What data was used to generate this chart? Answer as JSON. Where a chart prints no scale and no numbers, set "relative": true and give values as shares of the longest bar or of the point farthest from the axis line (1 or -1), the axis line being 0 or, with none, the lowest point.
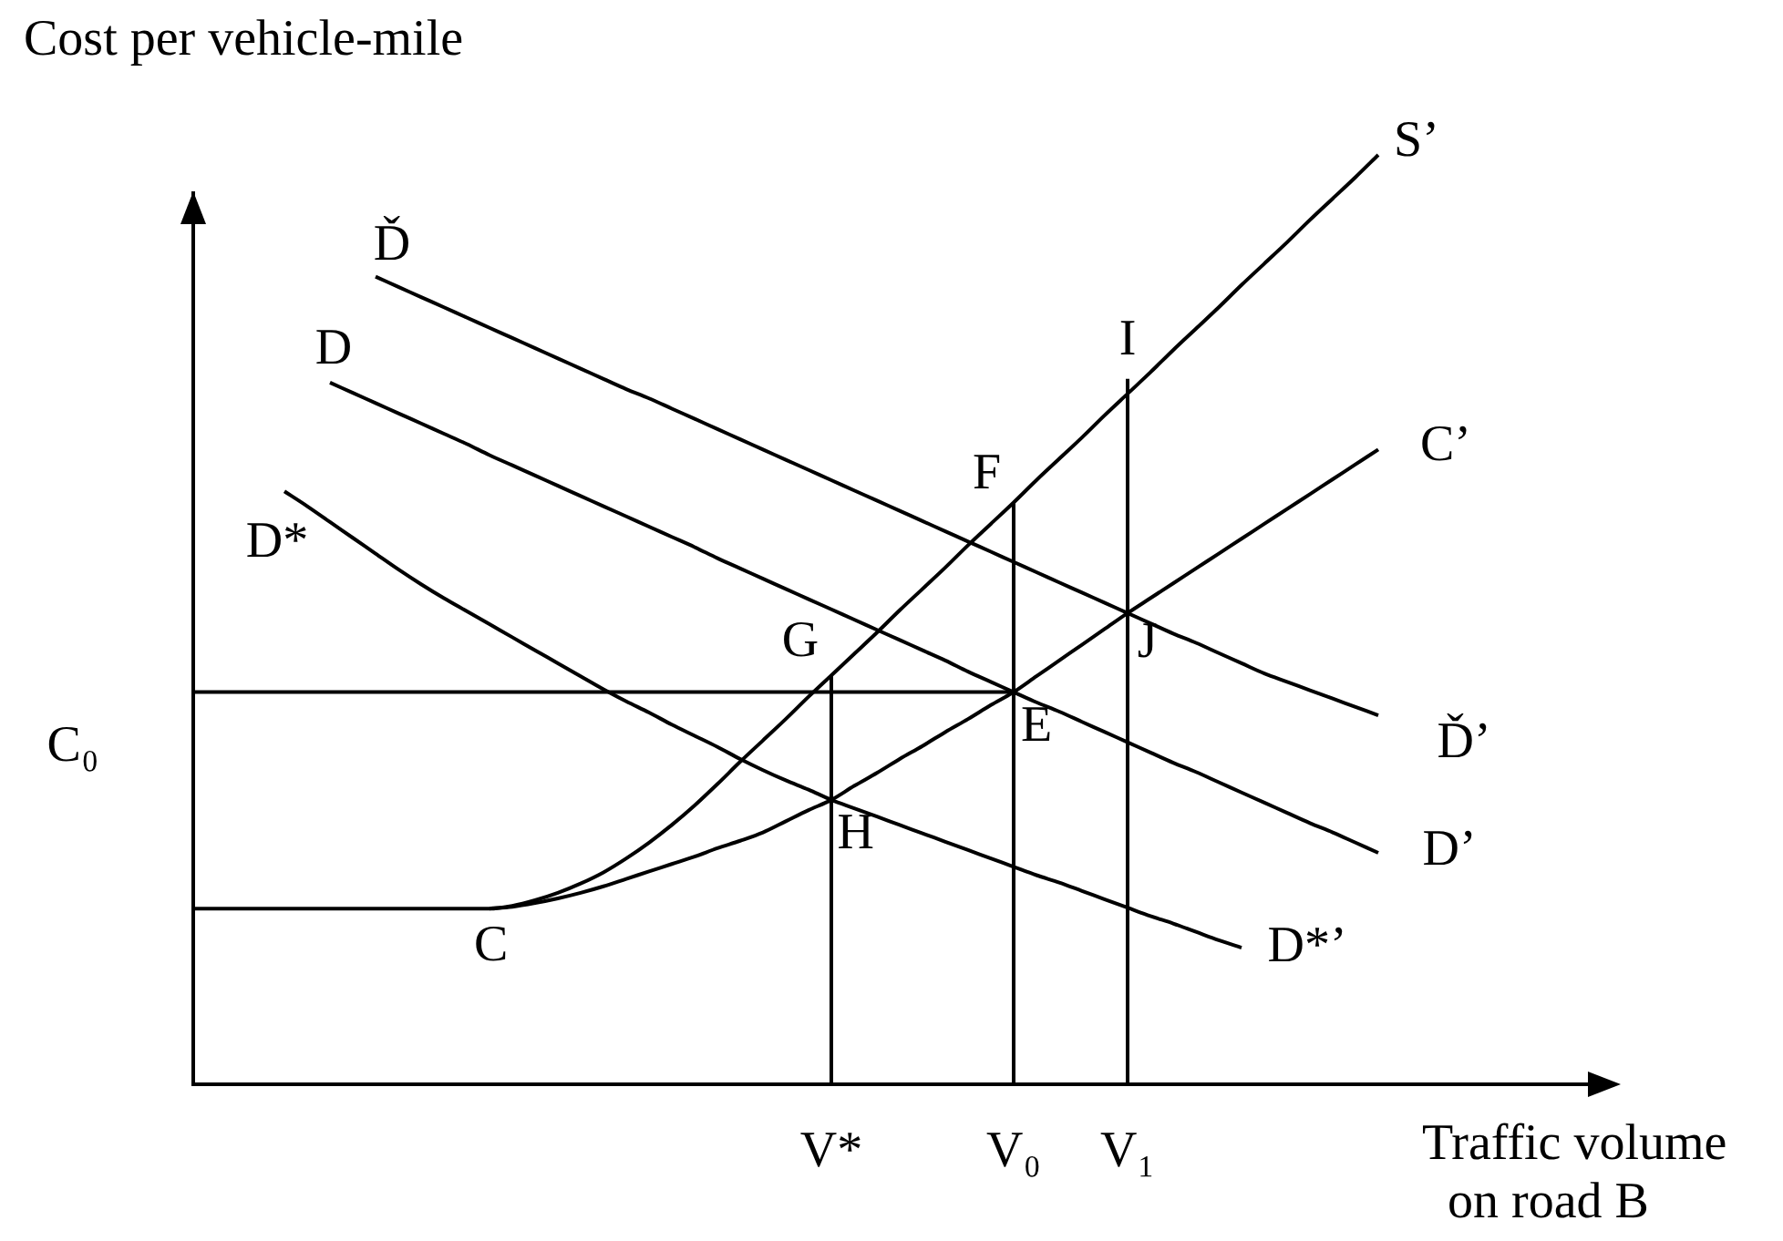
{
  "chart_data": {
    "type": "line",
    "relative": true,
    "ylabel": "Cost per vehicle-mile",
    "xlabel": "Traffic volume on road B",
    "categories": [
      null,
      null,
      null,
      null,
      null,
      null,
      null,
      null,
      null,
      null,
      null,
      null,
      null,
      null,
      null,
      null,
      null,
      null,
      null,
      null,
      null,
      null,
      null,
      null,
      null,
      null,
      null,
      null,
      "V*",
      null,
      null,
      null,
      null,
      null,
      null,
      null,
      "V₀",
      null,
      null,
      null,
      null,
      "V₁",
      null,
      null,
      null,
      null,
      null,
      null,
      null,
      null,
      null,
      null,
      null,
      null,
      null,
      null,
      null,
      null,
      null,
      null,
      null,
      null,
      null
    ],
    "series": [
      {
        "color": "#000000",
        "values": [
          null,
          null,
          null,
          null,
          null,
          null,
          null,
          null,
          0.869,
          0.858,
          0.847,
          0.836,
          0.825,
          0.814,
          0.803,
          0.792,
          0.781,
          0.77,
          0.759,
          0.748,
          0.738,
          0.727,
          0.716,
          0.705,
          0.694,
          0.683,
          0.672,
          0.661,
          0.65,
          0.639,
          0.628,
          0.617,
          0.606,
          0.595,
          0.584,
          0.573,
          0.562,
          0.551,
          0.54,
          0.529,
          0.518,
          0.507,
          0.496,
          0.485,
          0.475,
          0.464,
          0.453,
          0.442,
          0.433,
          0.424,
          0.415,
          0.406,
          0.397,
          null,
          null,
          null,
          null,
          null,
          null,
          null,
          null,
          null,
          null
        ]
      },
      {
        "color": "#000000",
        "values": [
          null,
          null,
          null,
          null,
          null,
          null,
          0.755,
          0.744,
          0.733,
          0.722,
          0.711,
          0.7,
          0.689,
          0.677,
          0.666,
          0.655,
          0.644,
          0.633,
          0.622,
          0.611,
          0.6,
          0.589,
          0.578,
          0.566,
          0.555,
          0.544,
          0.533,
          0.522,
          0.511,
          0.5,
          0.489,
          0.478,
          0.467,
          0.456,
          0.444,
          0.433,
          0.422,
          0.411,
          0.401,
          0.39,
          0.379,
          0.368,
          0.357,
          0.346,
          0.336,
          0.325,
          0.314,
          0.303,
          0.292,
          0.281,
          0.271,
          0.26,
          0.249,
          null,
          null,
          null,
          null,
          null,
          null,
          null,
          null,
          null,
          null
        ]
      },
      {
        "color": "#000000",
        "values": [
          null,
          null,
          null,
          null,
          0.638,
          0.622,
          0.605,
          0.588,
          0.571,
          0.554,
          0.538,
          0.523,
          0.509,
          0.495,
          0.481,
          0.467,
          0.453,
          0.439,
          0.425,
          0.412,
          0.4,
          0.387,
          0.375,
          0.363,
          0.35,
          0.338,
          0.327,
          0.317,
          0.306,
          0.297,
          0.288,
          0.279,
          0.27,
          0.261,
          0.252,
          0.243,
          0.234,
          0.225,
          0.217,
          0.208,
          0.199,
          0.19,
          0.181,
          0.173,
          0.164,
          0.155,
          0.147,
          null,
          null,
          null,
          null,
          null,
          null,
          null,
          null,
          null,
          null,
          null,
          null,
          null,
          null,
          null,
          null
        ]
      },
      {
        "color": "#000000",
        "values": [
          null,
          null,
          null,
          null,
          null,
          null,
          null,
          null,
          null,
          null,
          null,
          null,
          null,
          0.189,
          0.191,
          0.195,
          0.2,
          0.206,
          0.213,
          0.221,
          0.229,
          0.237,
          0.245,
          0.254,
          0.262,
          0.271,
          0.283,
          0.295,
          0.306,
          0.321,
          0.335,
          0.35,
          0.364,
          0.379,
          0.393,
          0.408,
          0.422,
          0.439,
          0.456,
          0.473,
          0.49,
          0.507,
          0.523,
          0.539,
          0.555,
          0.571,
          0.587,
          0.603,
          0.619,
          0.635,
          0.651,
          0.667,
          0.683,
          null,
          null,
          null,
          null,
          null,
          null,
          null,
          null,
          null,
          null
        ]
      },
      {
        "color": "#000000",
        "values": [
          0.189,
          0.189,
          0.189,
          0.189,
          0.189,
          0.189,
          0.189,
          0.189,
          0.189,
          0.189,
          0.189,
          0.189,
          0.189,
          0.189,
          0.192,
          0.198,
          0.206,
          0.216,
          0.228,
          0.243,
          0.26,
          0.279,
          0.3,
          0.323,
          0.347,
          0.37,
          0.393,
          0.417,
          0.44,
          0.463,
          0.486,
          0.51,
          0.533,
          0.556,
          0.58,
          0.603,
          0.626,
          0.65,
          0.673,
          0.696,
          0.72,
          0.743,
          0.766,
          0.79,
          0.813,
          0.836,
          0.86,
          0.883,
          0.906,
          0.93,
          0.953,
          0.976,
          1,
          null,
          null,
          null,
          null,
          null,
          null,
          null,
          null,
          null,
          null
        ]
      },
      {
        "color": "#000000",
        "x": [
          "V*",
          "V*"
        ],
        "values": [
          0,
          0.44
        ]
      },
      {
        "color": "#000000",
        "x": [
          "V₀",
          "V₀"
        ],
        "values": [
          0,
          0.626
        ]
      },
      {
        "color": "#000000",
        "x": [
          "V₁",
          "V₁"
        ],
        "values": [
          0,
          0.759
        ]
      },
      {
        "color": "#000000",
        "values": [
          0.422,
          0.422,
          0.422,
          0.422,
          0.422,
          0.422,
          0.422,
          0.422,
          0.422,
          0.422,
          0.422,
          0.422,
          0.422,
          0.422,
          0.422,
          0.422,
          0.422,
          0.422,
          0.422,
          0.422,
          0.422,
          0.422,
          0.422,
          0.422,
          0.422,
          0.422,
          0.422,
          0.422,
          0.422,
          0.422,
          0.422,
          0.422,
          0.422,
          0.422,
          0.422,
          0.422,
          0.422,
          null,
          null,
          null,
          null,
          null,
          null,
          null,
          null,
          null,
          null,
          null,
          null,
          null,
          null,
          null,
          null,
          null,
          null,
          null,
          null,
          null,
          null,
          null,
          null,
          null,
          null
        ]
      }
    ],
    "annotations": [
      "Ď",
      "D",
      "D*",
      "S’",
      "C’",
      {
        "text": "I",
        "x": "V₁",
        "y": 0.759
      },
      {
        "text": "F",
        "x": "V₀",
        "y": 0.626
      },
      {
        "text": "J",
        "x": "V₁",
        "y": 0.507
      },
      {
        "text": "G",
        "x": "V*",
        "y": 0.44
      },
      {
        "text": "E",
        "x": "V₀",
        "y": 0.422
      },
      {
        "text": "H",
        "x": "V*",
        "y": 0.306
      },
      "Ď’",
      "D’",
      "D*’",
      {
        "text": "C",
        "y": 0.189
      },
      "C₀"
    ]
  }
}
